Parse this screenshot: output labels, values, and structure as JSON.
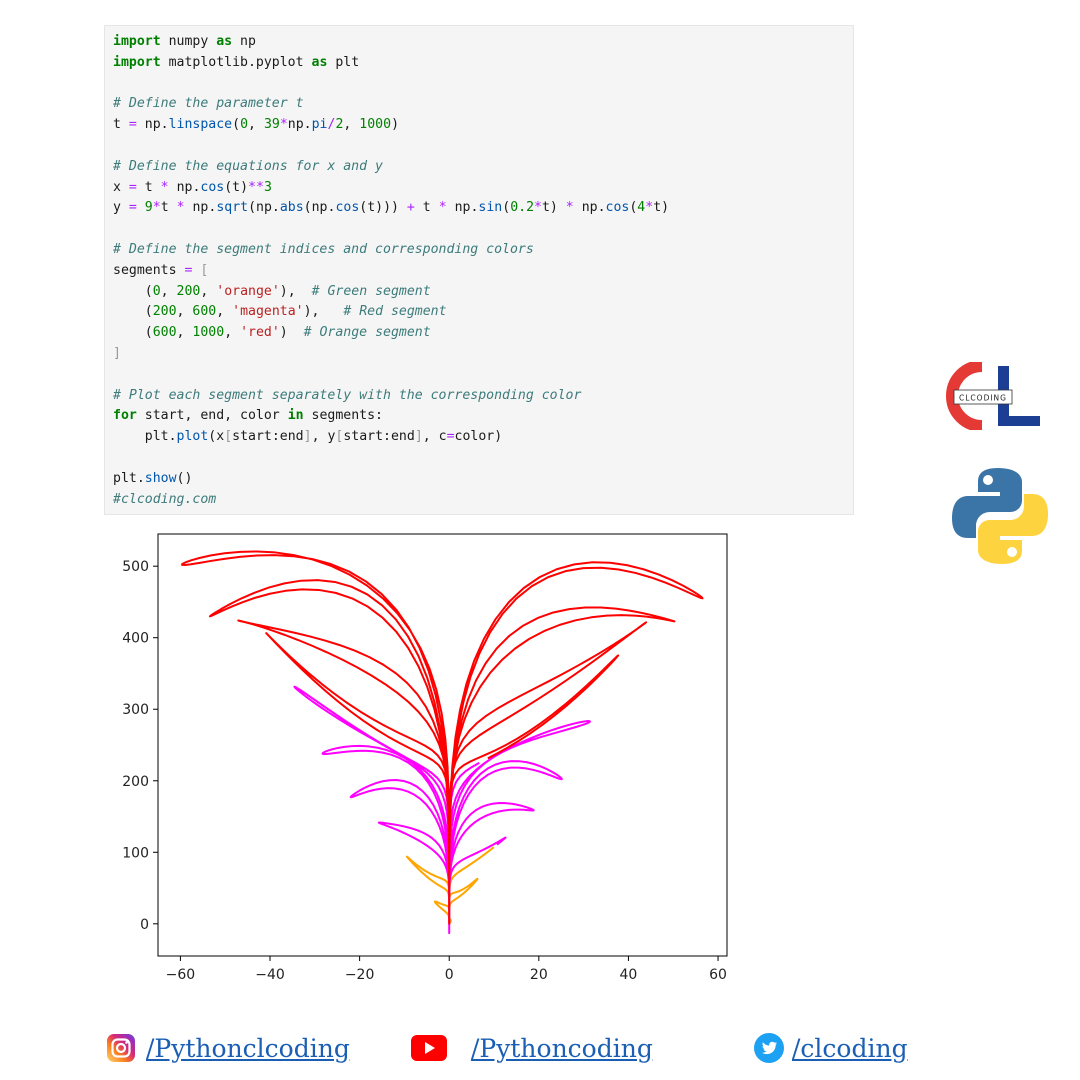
{
  "code": {
    "lines": [
      [
        {
          "t": "import",
          "c": "kw"
        },
        {
          "t": " numpy "
        },
        {
          "t": "as",
          "c": "kw"
        },
        {
          "t": " np"
        }
      ],
      [
        {
          "t": "import",
          "c": "kw"
        },
        {
          "t": " matplotlib.pyplot "
        },
        {
          "t": "as",
          "c": "kw"
        },
        {
          "t": " plt"
        }
      ],
      [],
      [
        {
          "t": "# Define the parameter t",
          "c": "cm"
        }
      ],
      [
        {
          "t": "t "
        },
        {
          "t": "=",
          "c": "op"
        },
        {
          "t": " np."
        },
        {
          "t": "linspace",
          "c": "fn"
        },
        {
          "t": "("
        },
        {
          "t": "0",
          "c": "num"
        },
        {
          "t": ", "
        },
        {
          "t": "39",
          "c": "num"
        },
        {
          "t": "*",
          "c": "op"
        },
        {
          "t": "np."
        },
        {
          "t": "pi",
          "c": "fn"
        },
        {
          "t": "/",
          "c": "op"
        },
        {
          "t": "2",
          "c": "num"
        },
        {
          "t": ", "
        },
        {
          "t": "1000",
          "c": "num"
        },
        {
          "t": ")"
        }
      ],
      [],
      [
        {
          "t": "# Define the equations for x and y",
          "c": "cm"
        }
      ],
      [
        {
          "t": "x "
        },
        {
          "t": "=",
          "c": "op"
        },
        {
          "t": " t "
        },
        {
          "t": "*",
          "c": "op"
        },
        {
          "t": " np."
        },
        {
          "t": "cos",
          "c": "fn"
        },
        {
          "t": "(t)"
        },
        {
          "t": "**",
          "c": "op"
        },
        {
          "t": "3",
          "c": "num"
        }
      ],
      [
        {
          "t": "y "
        },
        {
          "t": "=",
          "c": "op"
        },
        {
          "t": " "
        },
        {
          "t": "9",
          "c": "num"
        },
        {
          "t": "*",
          "c": "op"
        },
        {
          "t": "t "
        },
        {
          "t": "*",
          "c": "op"
        },
        {
          "t": " np."
        },
        {
          "t": "sqrt",
          "c": "fn"
        },
        {
          "t": "(np."
        },
        {
          "t": "abs",
          "c": "fn"
        },
        {
          "t": "(np."
        },
        {
          "t": "cos",
          "c": "fn"
        },
        {
          "t": "(t))) "
        },
        {
          "t": "+",
          "c": "op"
        },
        {
          "t": " t "
        },
        {
          "t": "*",
          "c": "op"
        },
        {
          "t": " np."
        },
        {
          "t": "sin",
          "c": "fn"
        },
        {
          "t": "("
        },
        {
          "t": "0.2",
          "c": "num"
        },
        {
          "t": "*",
          "c": "op"
        },
        {
          "t": "t) "
        },
        {
          "t": "*",
          "c": "op"
        },
        {
          "t": " np."
        },
        {
          "t": "cos",
          "c": "fn"
        },
        {
          "t": "("
        },
        {
          "t": "4",
          "c": "num"
        },
        {
          "t": "*",
          "c": "op"
        },
        {
          "t": "t)"
        }
      ],
      [],
      [
        {
          "t": "# Define the segment indices and corresponding colors",
          "c": "cm"
        }
      ],
      [
        {
          "t": "segments "
        },
        {
          "t": "=",
          "c": "op"
        },
        {
          "t": " "
        },
        {
          "t": "[",
          "c": "br"
        }
      ],
      [
        {
          "t": "    ("
        },
        {
          "t": "0",
          "c": "num"
        },
        {
          "t": ", "
        },
        {
          "t": "200",
          "c": "num"
        },
        {
          "t": ", "
        },
        {
          "t": "'orange'",
          "c": "str"
        },
        {
          "t": "),  "
        },
        {
          "t": "# Green segment",
          "c": "cm"
        }
      ],
      [
        {
          "t": "    ("
        },
        {
          "t": "200",
          "c": "num"
        },
        {
          "t": ", "
        },
        {
          "t": "600",
          "c": "num"
        },
        {
          "t": ", "
        },
        {
          "t": "'magenta'",
          "c": "str"
        },
        {
          "t": "),   "
        },
        {
          "t": "# Red segment",
          "c": "cm"
        }
      ],
      [
        {
          "t": "    ("
        },
        {
          "t": "600",
          "c": "num"
        },
        {
          "t": ", "
        },
        {
          "t": "1000",
          "c": "num"
        },
        {
          "t": ", "
        },
        {
          "t": "'red'",
          "c": "str"
        },
        {
          "t": ")  "
        },
        {
          "t": "# Orange segment",
          "c": "cm"
        }
      ],
      [
        {
          "t": "]",
          "c": "br"
        }
      ],
      [],
      [
        {
          "t": "# Plot each segment separately with the corresponding color",
          "c": "cm"
        }
      ],
      [
        {
          "t": "for",
          "c": "kw"
        },
        {
          "t": " start, end, color "
        },
        {
          "t": "in",
          "c": "kw"
        },
        {
          "t": " segments:"
        }
      ],
      [
        {
          "t": "    plt."
        },
        {
          "t": "plot",
          "c": "fn"
        },
        {
          "t": "(x"
        },
        {
          "t": "[",
          "c": "br"
        },
        {
          "t": "start:end"
        },
        {
          "t": "]",
          "c": "br"
        },
        {
          "t": ", y"
        },
        {
          "t": "[",
          "c": "br"
        },
        {
          "t": "start:end"
        },
        {
          "t": "]",
          "c": "br"
        },
        {
          "t": ", c"
        },
        {
          "t": "=",
          "c": "op"
        },
        {
          "t": "color)"
        }
      ],
      [],
      [
        {
          "t": "plt."
        },
        {
          "t": "show",
          "c": "fn"
        },
        {
          "t": "()"
        }
      ],
      [
        {
          "t": "#clcoding.com",
          "c": "cm"
        }
      ]
    ]
  },
  "chart_data": {
    "type": "line",
    "title": "",
    "xlabel": "",
    "ylabel": "",
    "xlim": [
      -65,
      62
    ],
    "ylim": [
      -45,
      545
    ],
    "x_ticks": [
      -60,
      -40,
      -20,
      0,
      20,
      40,
      60
    ],
    "y_ticks": [
      0,
      100,
      200,
      300,
      400,
      500
    ],
    "x_tick_labels": [
      "−60",
      "−40",
      "−20",
      "0",
      "20",
      "40",
      "60"
    ],
    "y_tick_labels": [
      "0",
      "100",
      "200",
      "300",
      "400",
      "500"
    ],
    "grid": false,
    "legend": false,
    "t_range": [
      0,
      61.26
    ],
    "n_points": 1000,
    "x_expr": "t * cos(t)^3",
    "y_expr": "9*t*sqrt(|cos(t)|) + t*sin(0.2*t)*cos(4*t)",
    "series": [
      {
        "start": 0,
        "end": 200,
        "color": "#ffa500"
      },
      {
        "start": 200,
        "end": 600,
        "color": "#ff00ff"
      },
      {
        "start": 600,
        "end": 1000,
        "color": "#ff0000"
      }
    ]
  },
  "side_logos": {
    "brand_text": "CLCODING",
    "brand_colors": {
      "red": "#e53935",
      "blue": "#1c3f94"
    },
    "python_colors": {
      "blue": "#3b75a7",
      "yellow": "#fdd33f"
    }
  },
  "social": {
    "instagram": {
      "icon": "instagram-icon",
      "label": "/Pythonclcoding"
    },
    "youtube": {
      "icon": "youtube-icon",
      "label": "/Pythoncoding"
    },
    "twitter": {
      "icon": "twitter-icon",
      "label": "/clcoding"
    },
    "link_color": "#1a5fb4"
  }
}
